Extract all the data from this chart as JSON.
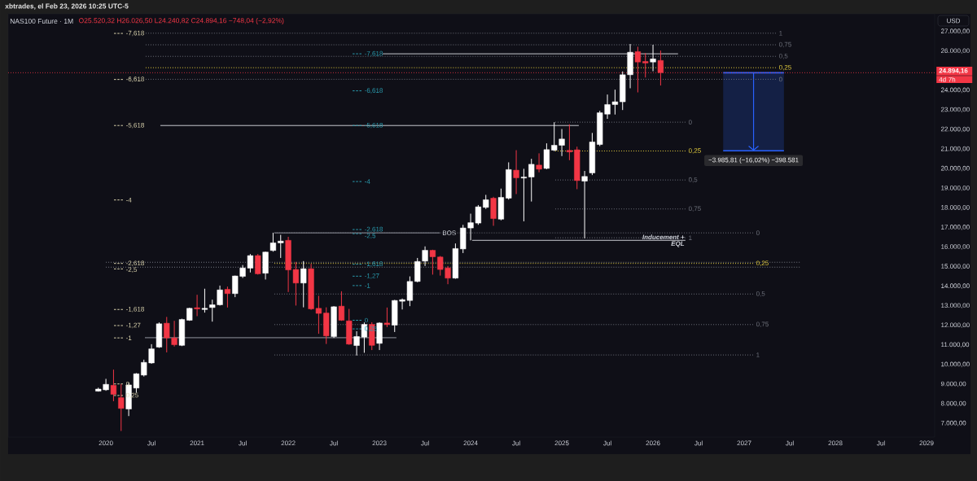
{
  "chart_data": {
    "type": "candlestick",
    "title": "NAS100 Future · 1M",
    "subtitle": "O25.520,32 H26.026,50 L24.240,82 C24.894,16 −748,04 (−2,92%)",
    "x": [
      "2019-12",
      "2020-01",
      "2020-02",
      "2020-03",
      "2020-04",
      "2020-05",
      "2020-06",
      "2020-07",
      "2020-08",
      "2020-09",
      "2020-10",
      "2020-11",
      "2020-12",
      "2021-01",
      "2021-02",
      "2021-03",
      "2021-04",
      "2021-05",
      "2021-06",
      "2021-07",
      "2021-08",
      "2021-09",
      "2021-10",
      "2021-11",
      "2021-12",
      "2022-01",
      "2022-02",
      "2022-03",
      "2022-04",
      "2022-05",
      "2022-06",
      "2022-07",
      "2022-08",
      "2022-09",
      "2022-10",
      "2022-11",
      "2022-12",
      "2023-01",
      "2023-02",
      "2023-03",
      "2023-04",
      "2023-05",
      "2023-06",
      "2023-07",
      "2023-08",
      "2023-09",
      "2023-10",
      "2023-11",
      "2023-12",
      "2024-01",
      "2024-02",
      "2024-03",
      "2024-04",
      "2024-05",
      "2024-06",
      "2024-07",
      "2024-08",
      "2024-09",
      "2024-10",
      "2024-11",
      "2024-12",
      "2025-01",
      "2025-02",
      "2025-03",
      "2025-04",
      "2025-05",
      "2025-06",
      "2025-07",
      "2025-08",
      "2025-09",
      "2025-10",
      "2025-11",
      "2025-12",
      "2026-01",
      "2026-02"
    ],
    "ohlc": [
      [
        8640,
        8820,
        8620,
        8750
      ],
      [
        8710,
        9270,
        8660,
        8990
      ],
      [
        8940,
        9740,
        8130,
        8480
      ],
      [
        8310,
        9000,
        6610,
        7760
      ],
      [
        7730,
        9070,
        7370,
        8960
      ],
      [
        8800,
        9560,
        8560,
        9530
      ],
      [
        9460,
        10250,
        9390,
        10110
      ],
      [
        10080,
        11040,
        10040,
        10800
      ],
      [
        10890,
        12150,
        10850,
        12080
      ],
      [
        12110,
        12430,
        10620,
        11360
      ],
      [
        11360,
        12230,
        10920,
        11010
      ],
      [
        10980,
        12340,
        10940,
        12300
      ],
      [
        12260,
        12900,
        12230,
        12870
      ],
      [
        12900,
        13560,
        12470,
        12840
      ],
      [
        12810,
        13870,
        12650,
        12870
      ],
      [
        12910,
        13310,
        12190,
        13050
      ],
      [
        13050,
        14030,
        13010,
        13810
      ],
      [
        13840,
        13980,
        12910,
        13620
      ],
      [
        13620,
        14540,
        13440,
        14520
      ],
      [
        14500,
        15080,
        14420,
        14930
      ],
      [
        14920,
        15640,
        14700,
        15560
      ],
      [
        15560,
        15640,
        14590,
        14630
      ],
      [
        14660,
        15760,
        14340,
        15740
      ],
      [
        15820,
        16730,
        15760,
        16210
      ],
      [
        16210,
        16620,
        15440,
        16300
      ],
      [
        16340,
        16520,
        13700,
        14830
      ],
      [
        14850,
        15240,
        13010,
        14160
      ],
      [
        14160,
        15280,
        12920,
        14890
      ],
      [
        14890,
        15140,
        12790,
        12840
      ],
      [
        12870,
        13510,
        11570,
        12610
      ],
      [
        12630,
        12920,
        11050,
        11460
      ],
      [
        11430,
        12980,
        11360,
        12950
      ],
      [
        12980,
        13740,
        12230,
        12260
      ],
      [
        12230,
        12840,
        11010,
        11040
      ],
      [
        10970,
        11700,
        10460,
        11430
      ],
      [
        11400,
        12150,
        10600,
        12050
      ],
      [
        12050,
        12160,
        10740,
        10980
      ],
      [
        11080,
        12160,
        10740,
        12120
      ],
      [
        12120,
        12910,
        11910,
        12040
      ],
      [
        12010,
        13300,
        11660,
        13270
      ],
      [
        13230,
        13370,
        12810,
        13310
      ],
      [
        13270,
        14500,
        12980,
        14240
      ],
      [
        14240,
        15440,
        14200,
        15260
      ],
      [
        15280,
        16030,
        15030,
        15830
      ],
      [
        15830,
        15860,
        14590,
        15500
      ],
      [
        15490,
        15540,
        14540,
        14850
      ],
      [
        14930,
        15030,
        14100,
        14410
      ],
      [
        14410,
        16180,
        14380,
        15920
      ],
      [
        15900,
        17130,
        15690,
        16970
      ],
      [
        16970,
        17700,
        16340,
        17240
      ],
      [
        17220,
        18140,
        17130,
        18050
      ],
      [
        18020,
        18660,
        17940,
        18410
      ],
      [
        18490,
        18560,
        17080,
        17450
      ],
      [
        17420,
        18980,
        17360,
        18530
      ],
      [
        18490,
        20320,
        18420,
        19950
      ],
      [
        19920,
        20940,
        18700,
        19530
      ],
      [
        19520,
        19990,
        17310,
        19570
      ],
      [
        19570,
        20500,
        18320,
        20220
      ],
      [
        20180,
        20780,
        19810,
        19970
      ],
      [
        20010,
        21290,
        19970,
        20970
      ],
      [
        20940,
        22370,
        20890,
        21190
      ],
      [
        21190,
        22020,
        20640,
        21510
      ],
      [
        20930,
        22260,
        20430,
        20850
      ],
      [
        20960,
        21120,
        18950,
        19390
      ],
      [
        19360,
        19880,
        16440,
        19600
      ],
      [
        19780,
        21820,
        19670,
        21360
      ],
      [
        21230,
        22950,
        21150,
        22850
      ],
      [
        22780,
        23780,
        22540,
        23270
      ],
      [
        23270,
        24030,
        22760,
        23410
      ],
      [
        23410,
        24960,
        22990,
        24790
      ],
      [
        24790,
        26360,
        24100,
        25940
      ],
      [
        25970,
        26220,
        23890,
        25440
      ],
      [
        25470,
        25900,
        24650,
        25390
      ],
      [
        25440,
        26320,
        24970,
        25600
      ],
      [
        25520.32,
        26026.5,
        24240.82,
        24894.16
      ]
    ],
    "colors": [
      "#ffffff",
      "#ffffff",
      "#f23645",
      "#f23645",
      "#ffffff",
      "#ffffff",
      "#ffffff",
      "#ffffff",
      "#ffffff",
      "#f23645",
      "#f23645",
      "#ffffff",
      "#ffffff",
      "#f23645",
      "#ffffff",
      "#ffffff",
      "#ffffff",
      "#f23645",
      "#ffffff",
      "#ffffff",
      "#ffffff",
      "#f23645",
      "#ffffff",
      "#ffffff",
      "#ffffff",
      "#f23645",
      "#f23645",
      "#ffffff",
      "#f23645",
      "#f23645",
      "#f23645",
      "#ffffff",
      "#f23645",
      "#f23645",
      "#ffffff",
      "#ffffff",
      "#f23645",
      "#ffffff",
      "#f23645",
      "#ffffff",
      "#ffffff",
      "#ffffff",
      "#ffffff",
      "#ffffff",
      "#f23645",
      "#f23645",
      "#f23645",
      "#ffffff",
      "#ffffff",
      "#ffffff",
      "#ffffff",
      "#ffffff",
      "#f23645",
      "#ffffff",
      "#ffffff",
      "#f23645",
      "#ffffff",
      "#ffffff",
      "#f23645",
      "#ffffff",
      "#ffffff",
      "#ffffff",
      "#f23645",
      "#f23645",
      "#ffffff",
      "#ffffff",
      "#ffffff",
      "#ffffff",
      "#ffffff",
      "#ffffff",
      "#ffffff",
      "#f23645",
      "#f23645",
      "#ffffff",
      "#f23645"
    ],
    "series": [
      {
        "type": "bar",
        "color": "#142045",
        "x": [
          "2027-02-08"
        ],
        "values": [
          -3985.81
        ],
        "base": [
          24894.16
        ],
        "value_labels": [
          "−3.985,81 (−16,02%) −398.581"
        ]
      },
      {
        "type": "line",
        "color": "#c8cad0",
        "x": [
          "2023-01-14",
          "2026-04-10"
        ],
        "values": [
          25860,
          25860
        ]
      },
      {
        "type": "line",
        "color": "#c8cad0",
        "x": [
          "2020-08-06",
          "2025-03-08"
        ],
        "values": [
          22200,
          22200
        ]
      },
      {
        "type": "line",
        "color": "#9598a1",
        "x": [
          "2021-11-06",
          "2023-08-29"
        ],
        "values": [
          16720,
          16720
        ]
      },
      {
        "type": "line",
        "color": "#c8cad0",
        "x": [
          "2024-01-07",
          "2026-05-09"
        ],
        "values": [
          16340,
          16340
        ]
      },
      {
        "type": "line",
        "color": "#9598a1",
        "x": [
          "2020-06-05",
          "2023-03-08"
        ],
        "values": [
          11370,
          11370
        ]
      },
      {
        "type": "line",
        "color": "#787b86",
        "x": [
          "2020-01-01",
          "2027-08-10"
        ],
        "values": [
          15220,
          15220
        ],
        "line_style": "dotted"
      },
      {
        "type": "line",
        "color": "#787b86",
        "x": [
          "2020-01-01",
          "2027-08-10"
        ],
        "values": [
          14970,
          14970
        ],
        "line_style": "dotted"
      },
      {
        "type": "line",
        "name": "-7,618",
        "color": "#ddd6b0",
        "x": [
          "2020-02-03",
          "2020-03-08"
        ],
        "values": [
          26900,
          26900
        ],
        "line_style": "dashed"
      },
      {
        "type": "line",
        "name": "-6,618",
        "color": "#ddd6b0",
        "x": [
          "2020-02-03",
          "2020-03-08"
        ],
        "values": [
          24550,
          24550
        ],
        "line_style": "dashed"
      },
      {
        "type": "line",
        "name": "-5,618",
        "color": "#ddd6b0",
        "x": [
          "2020-02-03",
          "2020-03-08"
        ],
        "values": [
          22200,
          22200
        ],
        "line_style": "dashed"
      },
      {
        "type": "line",
        "name": "-4",
        "color": "#ddd6b0",
        "x": [
          "2020-02-03",
          "2020-03-08"
        ],
        "values": [
          18400,
          18400
        ],
        "line_style": "dashed"
      },
      {
        "type": "line",
        "name": "-2,618",
        "color": "#ddd6b0",
        "x": [
          "2020-02-03",
          "2020-03-08"
        ],
        "values": [
          15160,
          15160
        ],
        "line_style": "dashed"
      },
      {
        "type": "line",
        "name": "-2,5",
        "color": "#ddd6b0",
        "x": [
          "2020-02-03",
          "2020-03-08"
        ],
        "values": [
          14880,
          14880
        ],
        "line_style": "dashed"
      },
      {
        "type": "line",
        "name": "-1,618",
        "color": "#ddd6b0",
        "x": [
          "2020-02-03",
          "2020-03-08"
        ],
        "values": [
          12810,
          12810
        ],
        "line_style": "dashed"
      },
      {
        "type": "line",
        "name": "-1,27",
        "color": "#ddd6b0",
        "x": [
          "2020-02-03",
          "2020-03-08"
        ],
        "values": [
          11990,
          11990
        ],
        "line_style": "dashed"
      },
      {
        "type": "line",
        "name": "-1",
        "color": "#ddd6b0",
        "x": [
          "2020-02-03",
          "2020-03-08"
        ],
        "values": [
          11360,
          11360
        ],
        "line_style": "dashed"
      },
      {
        "type": "line",
        "name": "0",
        "color": "#ddd6b0",
        "x": [
          "2020-02-03",
          "2020-03-08"
        ],
        "values": [
          9010,
          9010
        ],
        "line_style": "dashed"
      },
      {
        "type": "line",
        "name": "0,25",
        "color": "#ddd6b0",
        "x": [
          "2020-02-03",
          "2020-03-08"
        ],
        "values": [
          8420,
          8420
        ],
        "line_style": "dashed"
      },
      {
        "type": "line",
        "name": "-7,618",
        "color": "#2a9db0",
        "x": [
          "2022-09-15",
          "2022-10-20"
        ],
        "values": [
          25860,
          25860
        ],
        "line_style": "dashed"
      },
      {
        "type": "line",
        "name": "-6,618",
        "color": "#2a9db0",
        "x": [
          "2022-09-15",
          "2022-10-20"
        ],
        "values": [
          23970,
          23970
        ],
        "line_style": "dashed"
      },
      {
        "type": "line",
        "name": "-5,618",
        "color": "#2a9db0",
        "x": [
          "2022-09-15",
          "2022-10-20"
        ],
        "values": [
          22200,
          22200
        ],
        "line_style": "dashed"
      },
      {
        "type": "line",
        "name": "-4",
        "color": "#2a9db0",
        "x": [
          "2022-09-15",
          "2022-10-20"
        ],
        "values": [
          19340,
          19340
        ],
        "line_style": "dashed"
      },
      {
        "type": "line",
        "name": "-2,618",
        "color": "#2a9db0",
        "x": [
          "2022-09-15",
          "2022-10-20"
        ],
        "values": [
          16890,
          16890
        ],
        "line_style": "dashed"
      },
      {
        "type": "line",
        "name": "-2,5",
        "color": "#2a9db0",
        "x": [
          "2022-09-15",
          "2022-10-20"
        ],
        "values": [
          16680,
          16680
        ],
        "line_style": "dashed"
      },
      {
        "type": "line",
        "name": "-1,618",
        "color": "#2a9db0",
        "x": [
          "2022-09-15",
          "2022-10-20"
        ],
        "values": [
          15120,
          15120
        ],
        "line_style": "dashed"
      },
      {
        "type": "line",
        "name": "-1,27",
        "color": "#2a9db0",
        "x": [
          "2022-09-15",
          "2022-10-20"
        ],
        "values": [
          14510,
          14510
        ],
        "line_style": "dashed"
      },
      {
        "type": "line",
        "name": "-1",
        "color": "#2a9db0",
        "x": [
          "2022-09-15",
          "2022-10-20"
        ],
        "values": [
          14030,
          14030
        ],
        "line_style": "dashed"
      },
      {
        "type": "line",
        "name": "0",
        "color": "#2a9db0",
        "x": [
          "2022-09-15",
          "2022-10-20"
        ],
        "values": [
          12260,
          12260
        ],
        "line_style": "dashed"
      },
      {
        "type": "line",
        "name": "0,25",
        "color": "#2a9db0",
        "x": [
          "2022-09-15",
          "2022-10-20"
        ],
        "values": [
          11820,
          11820
        ],
        "line_style": "dashed"
      },
      {
        "type": "line",
        "name": "0",
        "color": "#6d707a",
        "x": [
          "2021-11-06",
          "2027-02-06"
        ],
        "values": [
          16720,
          16720
        ],
        "line_style": "dotted"
      },
      {
        "type": "line",
        "name": "0,25",
        "color": "#e6cf3e",
        "x": [
          "2021-11-06",
          "2027-02-06"
        ],
        "values": [
          15160,
          15160
        ],
        "line_style": "dotted"
      },
      {
        "type": "line",
        "name": "0,5",
        "color": "#6d707a",
        "x": [
          "2021-11-06",
          "2027-02-06"
        ],
        "values": [
          13600,
          13600
        ],
        "line_style": "dotted"
      },
      {
        "type": "line",
        "name": "0,75",
        "color": "#6d707a",
        "x": [
          "2021-11-06",
          "2027-02-06"
        ],
        "values": [
          12040,
          12040
        ],
        "line_style": "dotted"
      },
      {
        "type": "line",
        "name": "1",
        "color": "#6d707a",
        "x": [
          "2021-11-06",
          "2027-02-06"
        ],
        "values": [
          10490,
          10490
        ],
        "line_style": "dotted"
      },
      {
        "type": "line",
        "name": "0",
        "color": "#6d707a",
        "x": [
          "2024-12-05",
          "2026-05-09"
        ],
        "values": [
          22370,
          22370
        ],
        "line_style": "dotted"
      },
      {
        "type": "line",
        "name": "0,25",
        "color": "#e6cf3e",
        "x": [
          "2024-12-05",
          "2026-05-09"
        ],
        "values": [
          20900,
          20900
        ],
        "line_style": "dotted"
      },
      {
        "type": "line",
        "name": "0,5",
        "color": "#6d707a",
        "x": [
          "2024-12-05",
          "2026-05-09"
        ],
        "values": [
          19420,
          19420
        ],
        "line_style": "dotted"
      },
      {
        "type": "line",
        "name": "0,75",
        "color": "#6d707a",
        "x": [
          "2024-12-05",
          "2026-05-09"
        ],
        "values": [
          17940,
          17940
        ],
        "line_style": "dotted"
      },
      {
        "type": "line",
        "name": "1",
        "color": "#6d707a",
        "x": [
          "2024-12-05",
          "2026-05-09"
        ],
        "values": [
          16470,
          16470
        ],
        "line_style": "dotted"
      },
      {
        "type": "line",
        "name": "1",
        "color": "#6d707a",
        "x": [
          "2020-06-08",
          "2027-05-06"
        ],
        "values": [
          26910,
          26910
        ],
        "line_style": "dotted"
      },
      {
        "type": "line",
        "name": "0,75",
        "color": "#6d707a",
        "x": [
          "2020-06-08",
          "2027-05-06"
        ],
        "values": [
          26320,
          26320
        ],
        "line_style": "dotted"
      },
      {
        "type": "line",
        "name": "0,5",
        "color": "#6d707a",
        "x": [
          "2020-06-08",
          "2027-05-06"
        ],
        "values": [
          25730,
          25730
        ],
        "line_style": "dotted"
      },
      {
        "type": "line",
        "name": "0,25",
        "color": "#e6cf3e",
        "x": [
          "2020-06-08",
          "2027-05-06"
        ],
        "values": [
          25150,
          25150
        ],
        "line_style": "dotted"
      },
      {
        "type": "line",
        "name": "0",
        "color": "#6d707a",
        "x": [
          "2020-06-08",
          "2027-05-06"
        ],
        "values": [
          24560,
          24560
        ],
        "line_style": "dotted"
      }
    ],
    "xlim": [
      "2018-12-05",
      "2029-02-03"
    ],
    "xticks": [
      {
        "value": "2020-01",
        "label": "2020"
      },
      {
        "value": "2020-07",
        "label": "Jul"
      },
      {
        "value": "2021-01",
        "label": "2021"
      },
      {
        "value": "2021-07",
        "label": "Jul"
      },
      {
        "value": "2022-01",
        "label": "2022"
      },
      {
        "value": "2022-07",
        "label": "Jul"
      },
      {
        "value": "2023-01",
        "label": "2023"
      },
      {
        "value": "2023-07",
        "label": "Jul"
      },
      {
        "value": "2024-01",
        "label": "2024"
      },
      {
        "value": "2024-07",
        "label": "Jul"
      },
      {
        "value": "2025-01",
        "label": "2025"
      },
      {
        "value": "2025-07",
        "label": "Jul"
      },
      {
        "value": "2026-01",
        "label": "2026"
      },
      {
        "value": "2026-07",
        "label": "Jul"
      },
      {
        "value": "2027-01",
        "label": "2027"
      },
      {
        "value": "2027-07",
        "label": "Jul"
      },
      {
        "value": "2028-01",
        "label": "2028"
      },
      {
        "value": "2028-07",
        "label": "Jul"
      },
      {
        "value": "2029-01",
        "label": "2029"
      }
    ],
    "ylim": [
      6300,
      27900
    ],
    "yticks": [
      {
        "value": 7000,
        "label": "7.000,00"
      },
      {
        "value": 8000,
        "label": "8.000,00"
      },
      {
        "value": 9000,
        "label": "9.000,00"
      },
      {
        "value": 10000,
        "label": "10.000,00"
      },
      {
        "value": 11000,
        "label": "11.000,00"
      },
      {
        "value": 12000,
        "label": "12.000,00"
      },
      {
        "value": 13000,
        "label": "13.000,00"
      },
      {
        "value": 14000,
        "label": "14.000,00"
      },
      {
        "value": 15000,
        "label": "15.000,00"
      },
      {
        "value": 16000,
        "label": "16.000,00"
      },
      {
        "value": 17000,
        "label": "17.000,00"
      },
      {
        "value": 18000,
        "label": "18.000,00"
      },
      {
        "value": 19000,
        "label": "19.000,00"
      },
      {
        "value": 20000,
        "label": "20.000,00"
      },
      {
        "value": 21000,
        "label": "21.000,00"
      },
      {
        "value": 22000,
        "label": "22.000,00"
      },
      {
        "value": 23000,
        "label": "23.000,00"
      },
      {
        "value": 24000,
        "label": "24.000,00"
      },
      {
        "value": 26000,
        "label": "26.000,00"
      },
      {
        "value": 27000,
        "label": "27.000,00"
      }
    ],
    "ref_lines": [
      {
        "axis": "y",
        "value": 24894.16,
        "label": "24.894,16",
        "color": "#f23645",
        "line_style": "dotted"
      }
    ],
    "annotations": [
      "xbtrades, el Feb 23, 2026 10:25 UTC-5",
      "USD",
      "4d 7h",
      {
        "text": "BOS",
        "x": "2023-08-29",
        "y": 16720
      },
      {
        "text": "Inducement +",
        "x": "2026-05-09",
        "y": 16340
      },
      {
        "text": "EQL",
        "x": "2026-05-09",
        "y": 16340
      }
    ]
  }
}
